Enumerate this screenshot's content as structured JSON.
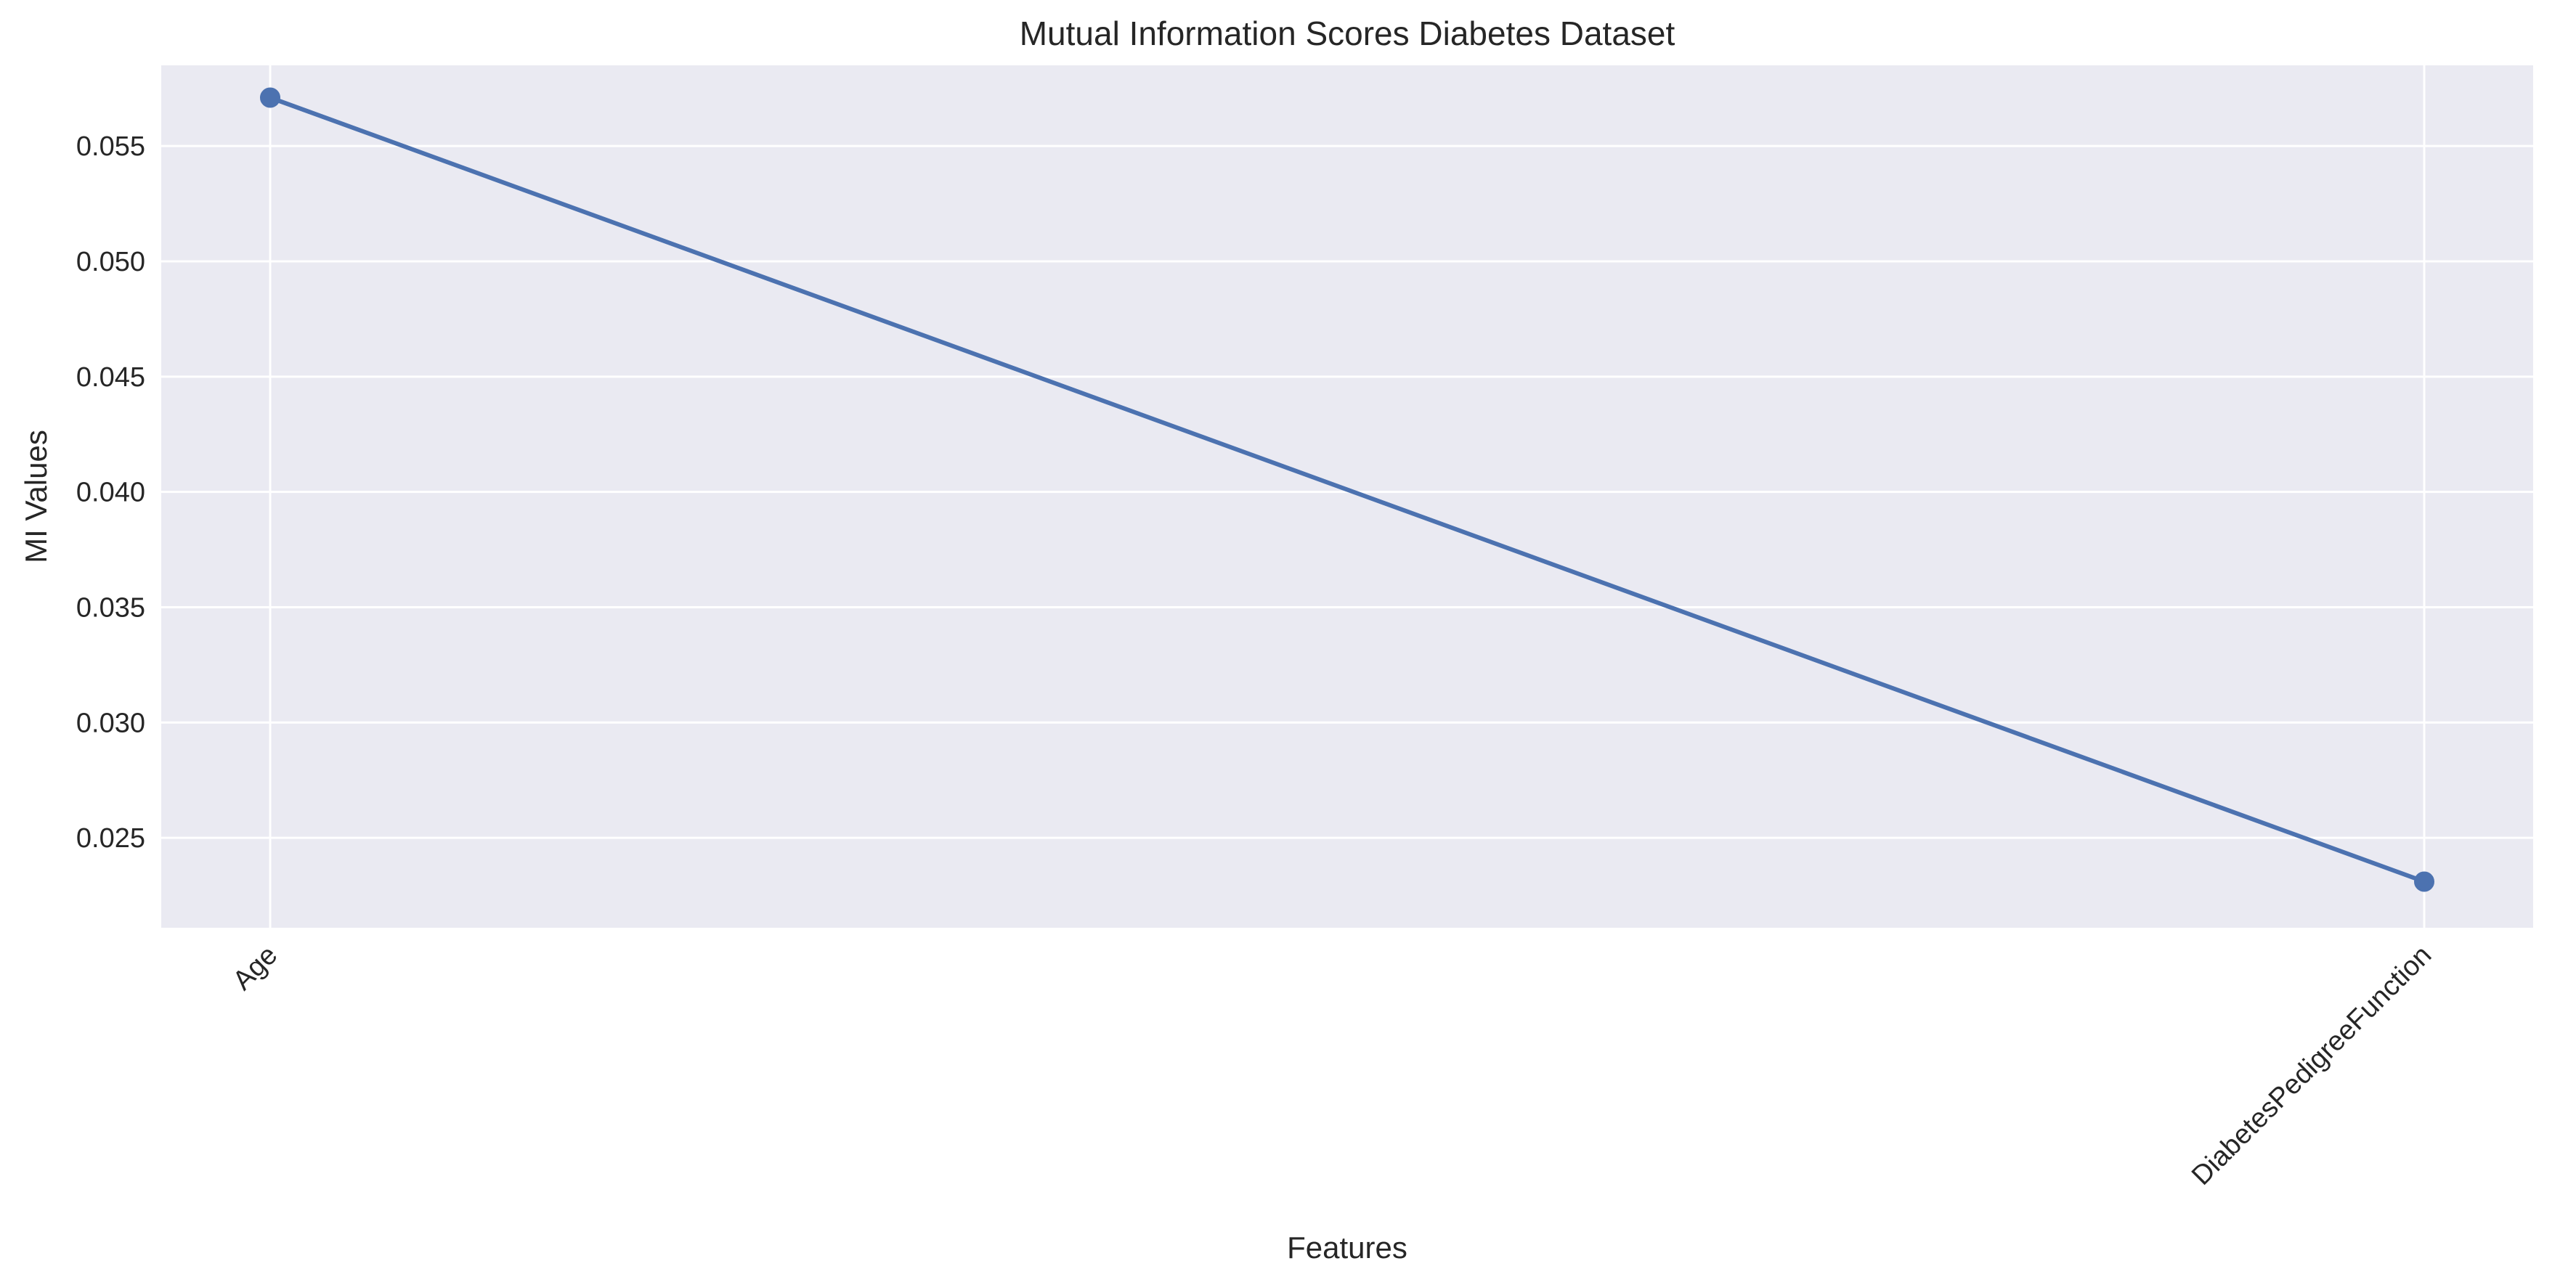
{
  "chart_data": {
    "type": "line",
    "title": "Mutual Information Scores Diabetes Dataset",
    "xlabel": "Features",
    "ylabel": "MI Values",
    "categories": [
      "Age",
      "DiabetesPedigreeFunction"
    ],
    "series": [
      {
        "values": [
          0.0571,
          0.0231
        ]
      }
    ],
    "ylim": [
      0.0211,
      0.0585
    ],
    "yticks": [
      0.025,
      0.03,
      0.035,
      0.04,
      0.045,
      0.05,
      0.055
    ],
    "ytick_labels": [
      "0.025",
      "0.030",
      "0.035",
      "0.040",
      "0.045",
      "0.050",
      "0.055"
    ],
    "xtick_rotation_deg": 45,
    "grid": true,
    "markers": true,
    "colors": {
      "plot_background": "#eaeaf2",
      "grid": "#ffffff",
      "line": "#4c72b0",
      "text": "#262626"
    }
  }
}
